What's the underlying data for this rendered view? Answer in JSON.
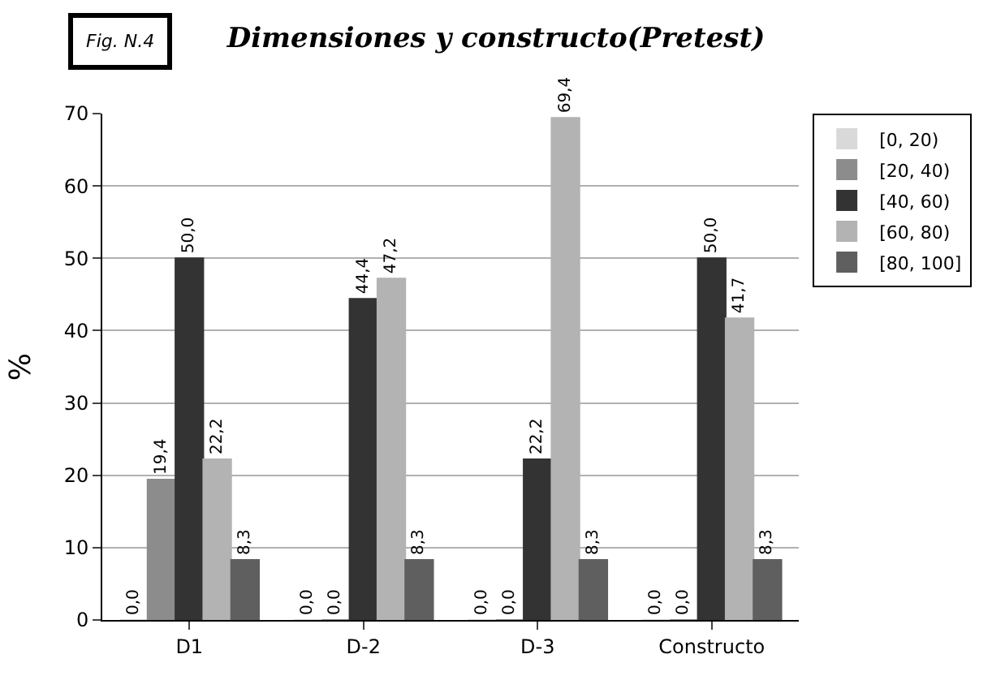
{
  "chart_data": {
    "type": "bar",
    "title": "Dimensiones y constructo(Pretest)",
    "ylabel": "%",
    "annotations": [
      "Fig. N.4"
    ],
    "categories": [
      "D1",
      "D-2",
      "D-3",
      "Constructo"
    ],
    "series": [
      {
        "name": "[0, 20)",
        "color": "#d9d9d9",
        "values": [
          0.0,
          0.0,
          0.0,
          0.0
        ],
        "value_labels": [
          "0,0",
          "0,0",
          "0,0",
          "0,0"
        ]
      },
      {
        "name": "[20, 40)",
        "color": "#8c8c8c",
        "values": [
          19.4,
          0.0,
          0.0,
          0.0
        ],
        "value_labels": [
          "19,4",
          "0,0",
          "0,0",
          "0,0"
        ]
      },
      {
        "name": "[40, 60)",
        "color": "#333333",
        "values": [
          50.0,
          44.4,
          22.2,
          50.0
        ],
        "value_labels": [
          "50,0",
          "44,4",
          "22,2",
          "50,0"
        ]
      },
      {
        "name": "[60, 80)",
        "color": "#b3b3b3",
        "values": [
          22.2,
          47.2,
          69.4,
          41.7
        ],
        "value_labels": [
          "22,2",
          "47,2",
          "69,4",
          "41,7"
        ]
      },
      {
        "name": "[80, 100]",
        "color": "#5f5f5f",
        "values": [
          8.3,
          8.3,
          8.3,
          8.3
        ],
        "value_labels": [
          "8,3",
          "8,3",
          "8,3",
          "8,3"
        ]
      }
    ],
    "ylim": [
      0,
      70
    ],
    "yticks": [
      0,
      10,
      20,
      30,
      40,
      50,
      60,
      70
    ],
    "grid": "y",
    "legend": "top right"
  }
}
